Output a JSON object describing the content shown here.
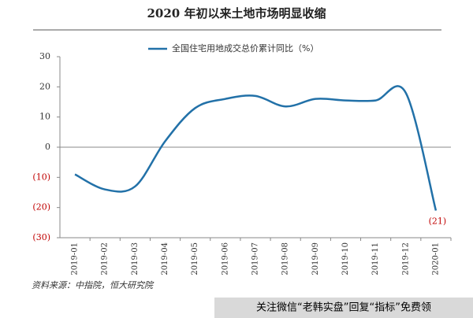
{
  "chart_data": {
    "type": "line",
    "title": "2020 年初以来土地市场明显收缩",
    "categories": [
      "2019-01",
      "2019-02",
      "2019-03",
      "2019-04",
      "2019-05",
      "2019-06",
      "2019-07",
      "2019-08",
      "2019-09",
      "2019-10",
      "2019-11",
      "2019-12",
      "2020-01"
    ],
    "series": [
      {
        "name": "全国住宅用地成交总价累计同比（%）",
        "color": "#2271a8",
        "values": [
          -9,
          -14,
          -13,
          2,
          13,
          16,
          17,
          13.5,
          16,
          15.5,
          15.5,
          18,
          -21
        ],
        "value_labels": [
          null,
          null,
          null,
          null,
          null,
          null,
          null,
          null,
          null,
          null,
          null,
          null,
          "(21)"
        ]
      }
    ],
    "ylim": [
      -30,
      30
    ],
    "yticks": [
      30,
      20,
      10,
      0,
      {
        "value": -10,
        "label": "(10)"
      },
      {
        "value": -20,
        "label": "(20)"
      },
      {
        "value": -30,
        "label": "(30)"
      }
    ],
    "source": "资料来源：中指院，恒大研究院",
    "watermark": "关注微信“老韩实盘”回复“指标”免费领"
  }
}
